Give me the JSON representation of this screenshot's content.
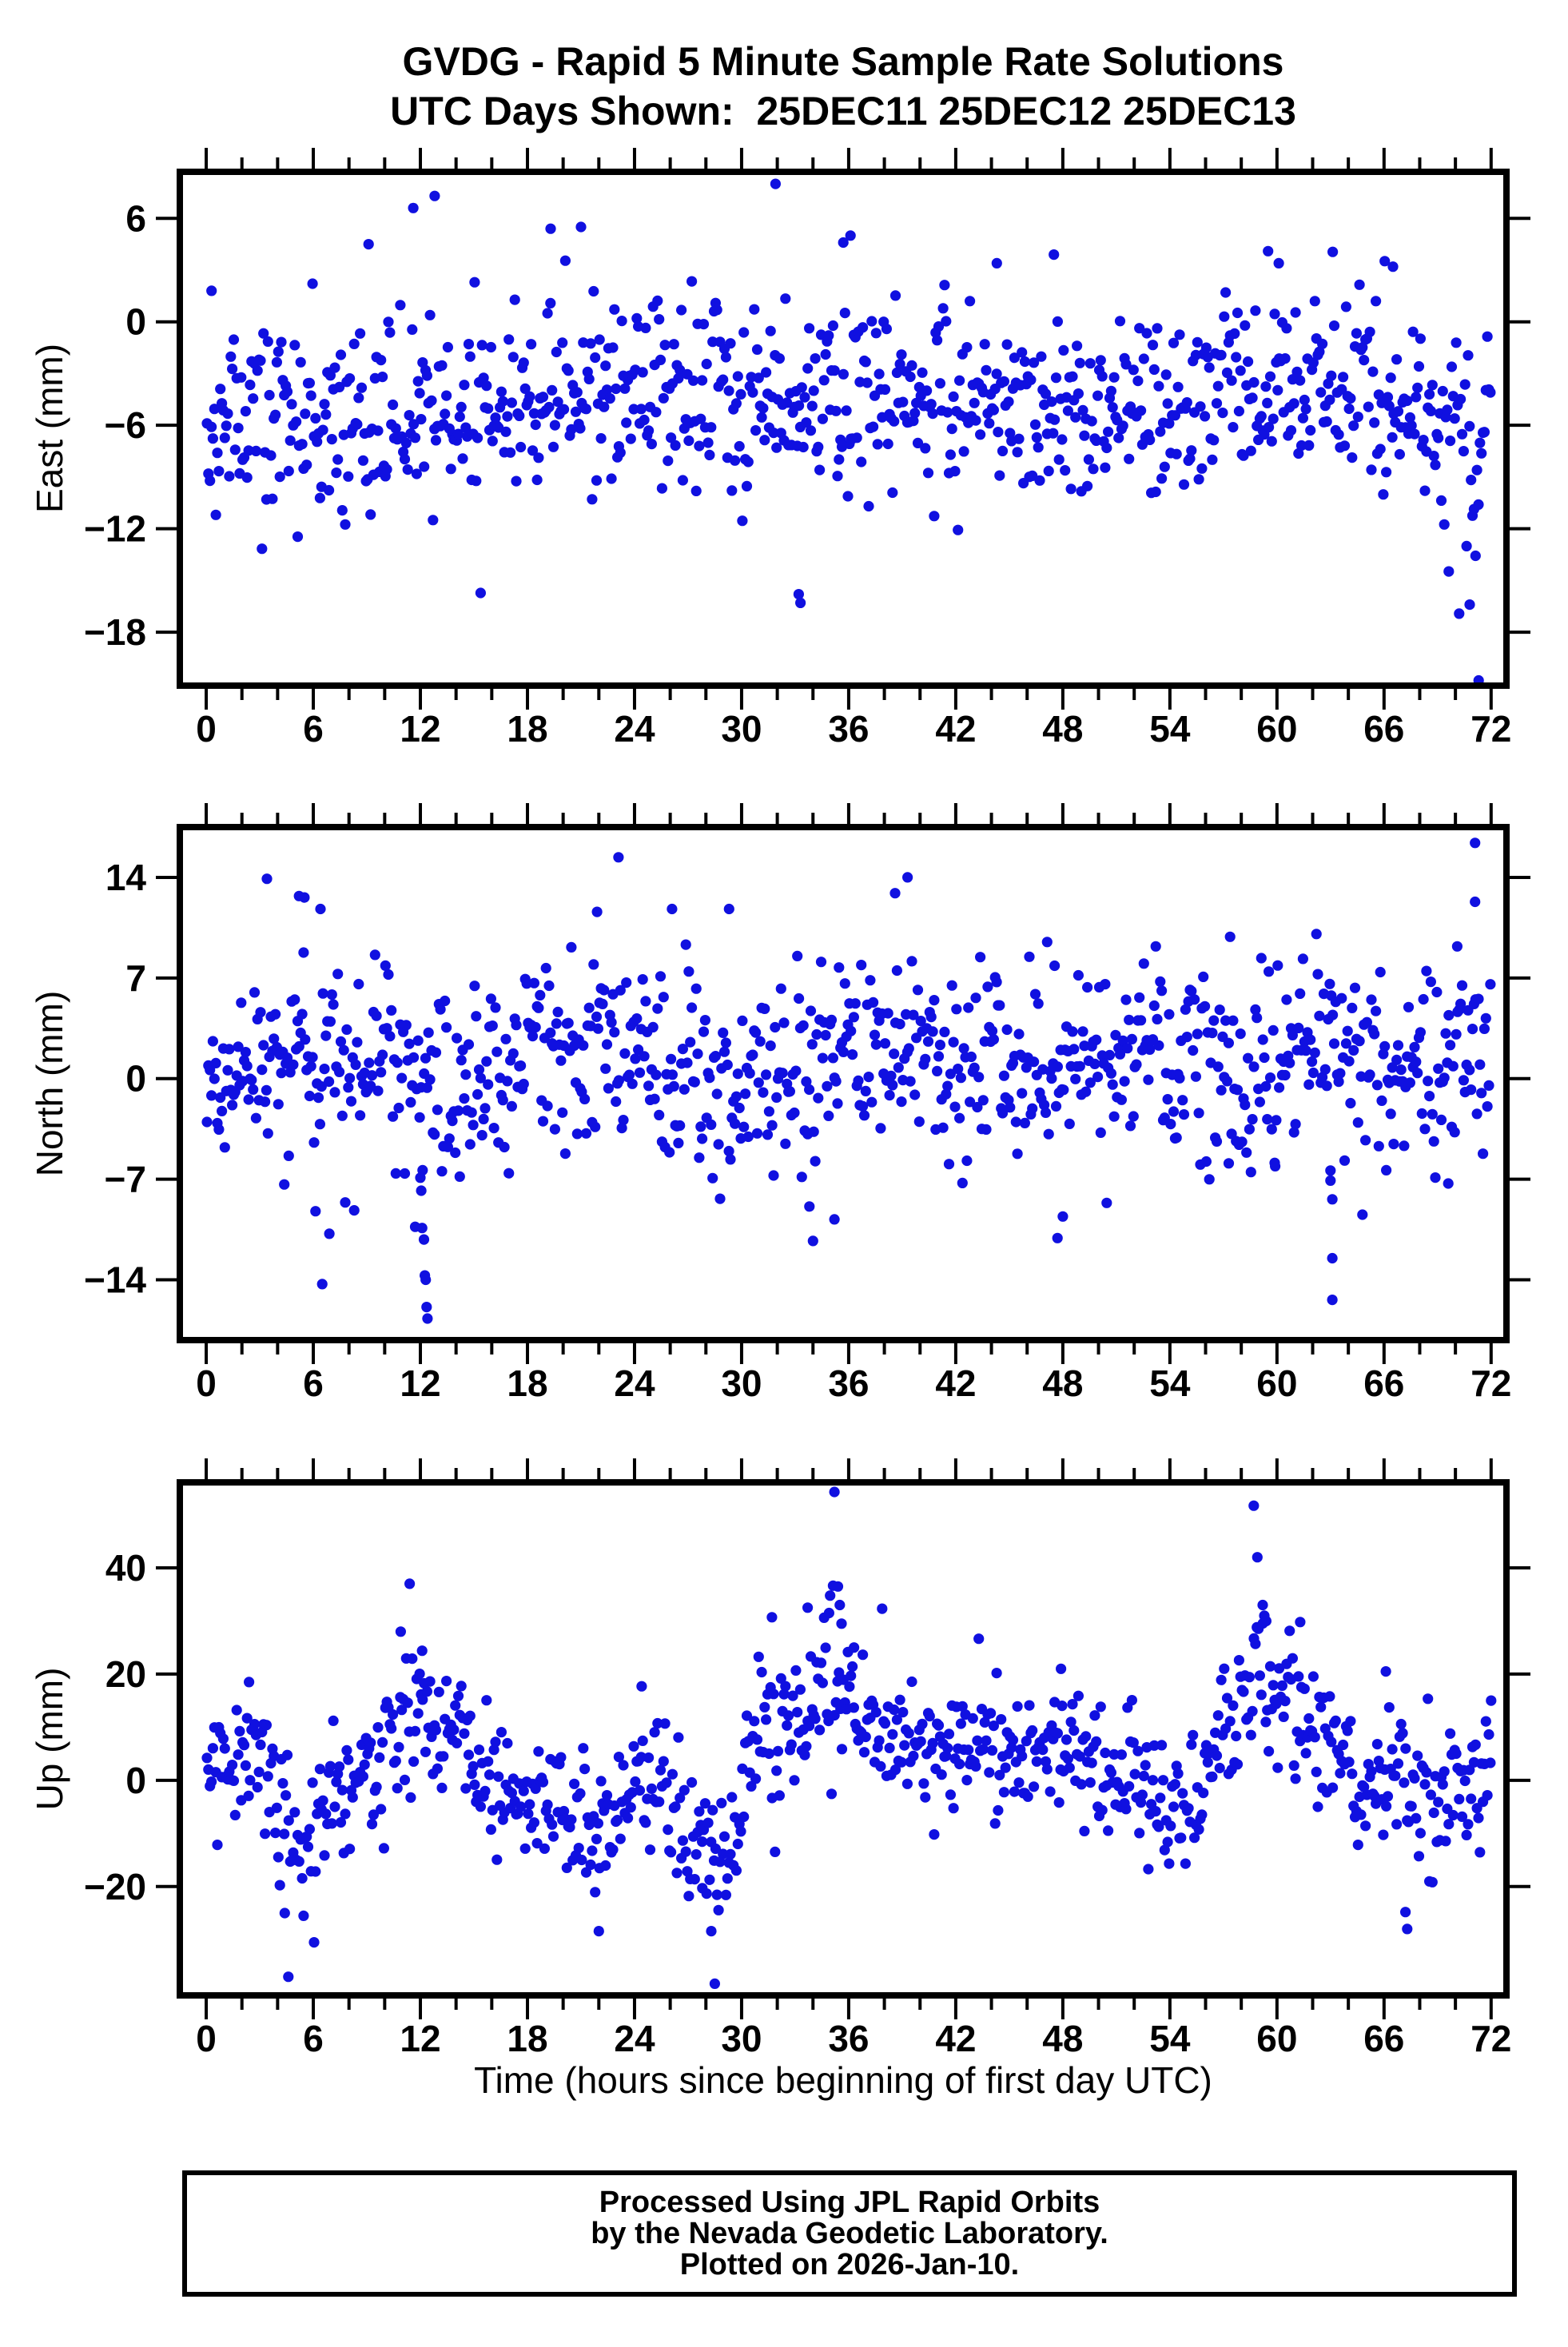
{
  "title": {
    "line1": "GVDG - Rapid 5 Minute Sample Rate Solutions",
    "line2": "UTC Days Shown:  25DEC11 25DEC12 25DEC13"
  },
  "x_axis": {
    "title": "Time (hours since beginning of first day UTC)",
    "ticks": [
      0,
      6,
      12,
      18,
      24,
      30,
      36,
      42,
      48,
      54,
      60,
      66,
      72
    ],
    "minor_step": 2,
    "lim": [
      -1.48,
      72.86
    ]
  },
  "marker": {
    "color": "#1010e0",
    "radius": 6.6
  },
  "frame_color": "#000000",
  "footer": {
    "line1": "Processed Using JPL Rapid Orbits",
    "line2": "by the Nevada Geodetic Laboratory.",
    "line3": "Plotted on 2026-Jan-10."
  },
  "chart_data": [
    {
      "type": "scatter",
      "name": "East",
      "ylabel": "East (mm)",
      "units": "mm",
      "yticks": [
        6,
        0,
        -6,
        -12,
        -18
      ],
      "ylim": [
        -21.1,
        8.7
      ],
      "n_points": 864,
      "sample_interval_min": 5,
      "seed": 7,
      "profile": {
        "bin_centers": [
          2,
          6,
          10,
          14,
          18,
          22,
          26,
          30,
          34,
          38,
          42,
          46,
          50,
          54,
          58,
          62,
          66,
          70
        ],
        "means": [
          -6.3,
          -5.2,
          -6.1,
          -4.8,
          -4.6,
          -4.2,
          -4.5,
          -4.2,
          -4.9,
          -3.6,
          -4.2,
          -5.0,
          -5.4,
          -5.5,
          -4.0,
          -2.9,
          -4.3,
          -7.6
        ],
        "stds": [
          2.9,
          2.8,
          2.8,
          2.8,
          2.8,
          2.8,
          2.8,
          2.8,
          2.8,
          2.8,
          2.8,
          2.8,
          2.8,
          2.8,
          2.8,
          2.8,
          2.8,
          3.2
        ]
      },
      "outliers": [
        [
          0.3,
          1.8
        ],
        [
          9.1,
          4.5
        ],
        [
          11.6,
          6.6
        ],
        [
          12.8,
          7.3
        ],
        [
          19.3,
          5.4
        ],
        [
          21.0,
          5.5
        ],
        [
          31.9,
          8.0
        ],
        [
          33.2,
          -15.8
        ],
        [
          33.3,
          -16.3
        ],
        [
          35.7,
          4.6
        ],
        [
          36.1,
          5.0
        ],
        [
          44.3,
          3.4
        ],
        [
          47.5,
          3.9
        ],
        [
          59.5,
          4.1
        ],
        [
          60.1,
          3.4
        ],
        [
          66.5,
          3.2
        ],
        [
          70.8,
          -16.4
        ],
        [
          71.3,
          -20.8
        ]
      ]
    },
    {
      "type": "scatter",
      "name": "North",
      "ylabel": "North (mm)",
      "units": "mm",
      "yticks": [
        14,
        7,
        0,
        -7,
        -14
      ],
      "ylim": [
        -18.2,
        17.5
      ],
      "n_points": 864,
      "sample_interval_min": 5,
      "seed": 13,
      "profile": {
        "bin_centers": [
          2,
          6,
          10,
          14,
          18,
          22,
          26,
          30,
          34,
          38,
          42,
          46,
          50,
          54,
          58,
          62,
          66,
          70
        ],
        "means": [
          -0.3,
          0.6,
          0.2,
          -0.8,
          1.9,
          1.4,
          1.0,
          -1.0,
          1.0,
          1.9,
          0.6,
          1.0,
          1.8,
          1.0,
          0.2,
          1.4,
          0.4,
          1.3
        ],
        "stds": [
          3.3,
          3.4,
          3.4,
          3.6,
          3.4,
          3.4,
          3.4,
          3.5,
          3.4,
          3.4,
          3.4,
          3.4,
          3.4,
          3.4,
          3.4,
          3.4,
          3.4,
          3.4
        ]
      },
      "outliers": [
        [
          3.4,
          13.9
        ],
        [
          5.2,
          12.7
        ],
        [
          5.5,
          12.6
        ],
        [
          6.4,
          11.8
        ],
        [
          6.5,
          -14.3
        ],
        [
          6.9,
          -10.8
        ],
        [
          12.0,
          -6.9
        ],
        [
          12.05,
          -7.8
        ],
        [
          12.1,
          -10.4
        ],
        [
          12.2,
          -11.2
        ],
        [
          12.25,
          -13.7
        ],
        [
          12.3,
          -14.0
        ],
        [
          12.35,
          -15.9
        ],
        [
          12.4,
          -16.7
        ],
        [
          21.9,
          11.6
        ],
        [
          23.1,
          15.4
        ],
        [
          26.1,
          11.8
        ],
        [
          29.3,
          11.8
        ],
        [
          33.8,
          -8.9
        ],
        [
          34.0,
          -11.3
        ],
        [
          35.2,
          -9.8
        ],
        [
          38.6,
          12.9
        ],
        [
          39.3,
          14.0
        ],
        [
          47.7,
          -11.1
        ],
        [
          48.0,
          -9.6
        ],
        [
          57.3,
          -5.9
        ],
        [
          59.9,
          -6.1
        ],
        [
          63.0,
          -6.4
        ],
        [
          63.0,
          -7.1
        ],
        [
          63.1,
          -8.4
        ],
        [
          63.1,
          -12.5
        ],
        [
          63.1,
          -15.4
        ],
        [
          69.6,
          -7.3
        ],
        [
          70.1,
          9.2
        ],
        [
          71.1,
          16.4
        ],
        [
          71.1,
          12.3
        ]
      ]
    },
    {
      "type": "scatter",
      "name": "Up",
      "ylabel": "Up (mm)",
      "units": "mm",
      "yticks": [
        40,
        20,
        0,
        -20
      ],
      "ylim": [
        -40.5,
        56.1
      ],
      "n_points": 864,
      "sample_interval_min": 5,
      "seed": 29,
      "profile": {
        "bin_centers": [
          1,
          3,
          5,
          7,
          9,
          11,
          13,
          15,
          17,
          19,
          21,
          23,
          25,
          27,
          29,
          31,
          33,
          35,
          37,
          39,
          41,
          43,
          45,
          47,
          49,
          51,
          53,
          55,
          57,
          59,
          61,
          63,
          65,
          67,
          69,
          71
        ],
        "means": [
          2,
          8,
          -12,
          -4,
          1,
          14,
          12,
          2,
          -4,
          -3,
          -8,
          -4,
          2,
          -10,
          -13,
          6,
          10,
          20,
          12,
          8,
          5,
          8,
          2,
          8,
          6,
          2,
          -2,
          -4,
          6,
          24,
          15,
          4,
          -2,
          2,
          -4,
          2
        ],
        "stds": [
          5.5,
          6,
          9,
          6.5,
          5.5,
          8,
          6.5,
          6.5,
          6,
          6.5,
          7.5,
          7,
          6.5,
          8,
          9,
          6.5,
          6.5,
          8,
          6,
          6,
          5.5,
          6,
          6.5,
          6.5,
          6,
          6,
          6.5,
          7,
          6.5,
          9,
          8,
          6.5,
          6.5,
          6.5,
          7,
          6.5
        ]
      },
      "outliers": [
        [
          2.4,
          18.5
        ],
        [
          4.4,
          -25.0
        ],
        [
          4.6,
          -37.0
        ],
        [
          10.9,
          28.0
        ],
        [
          11.4,
          37.0
        ],
        [
          12.1,
          24.4
        ],
        [
          22.0,
          -28.4
        ],
        [
          24.4,
          17.7
        ],
        [
          27.8,
          -20.3
        ],
        [
          28.3,
          -28.4
        ],
        [
          28.5,
          -38.3
        ],
        [
          31.7,
          30.7
        ],
        [
          33.7,
          32.5
        ],
        [
          34.9,
          31.5
        ],
        [
          35.2,
          54.3
        ],
        [
          35.4,
          36.5
        ],
        [
          35.5,
          33.0
        ],
        [
          35.6,
          29.5
        ],
        [
          36.3,
          25.0
        ],
        [
          47.9,
          21.0
        ],
        [
          58.7,
          51.7
        ],
        [
          58.9,
          42.0
        ],
        [
          59.2,
          33.0
        ],
        [
          59.4,
          30.0
        ],
        [
          61.3,
          29.8
        ],
        [
          66.1,
          20.5
        ],
        [
          67.2,
          -24.8
        ],
        [
          67.3,
          -28.0
        ],
        [
          72.0,
          15.0
        ]
      ]
    }
  ]
}
